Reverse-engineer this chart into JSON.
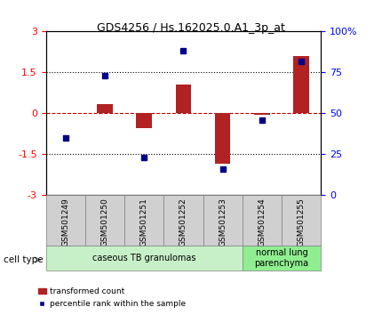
{
  "title": "GDS4256 / Hs.162025.0.A1_3p_at",
  "samples": [
    "GSM501249",
    "GSM501250",
    "GSM501251",
    "GSM501252",
    "GSM501253",
    "GSM501254",
    "GSM501255"
  ],
  "transformed_count": [
    0.0,
    0.35,
    -0.55,
    1.05,
    -1.85,
    -0.05,
    2.1
  ],
  "percentile_rank": [
    35,
    73,
    23,
    88,
    16,
    46,
    82
  ],
  "ylim_left": [
    -3,
    3
  ],
  "ylim_right": [
    0,
    100
  ],
  "yticks_left": [
    -3,
    -1.5,
    0,
    1.5,
    3
  ],
  "yticks_left_labels": [
    "-3",
    "-1.5",
    "0",
    "1.5",
    "3"
  ],
  "yticks_right": [
    0,
    25,
    50,
    75,
    100
  ],
  "yticks_right_labels": [
    "0",
    "25",
    "50",
    "75",
    "100%"
  ],
  "bar_color": "#b22222",
  "dot_color": "#00008b",
  "hline_color": "#cc0000",
  "dot_hline_color": "#cc0000",
  "groups": [
    {
      "label": "caseous TB granulomas",
      "samples": [
        0,
        1,
        2,
        3,
        4
      ],
      "color": "#c8f0c8"
    },
    {
      "label": "normal lung\nparenchyma",
      "samples": [
        5,
        6
      ],
      "color": "#90ee90"
    }
  ],
  "legend_bar_label": "transformed count",
  "legend_dot_label": "percentile rank within the sample",
  "cell_type_label": "cell type",
  "bar_width": 0.4,
  "dotted_hlines": [
    -1.5,
    1.5
  ],
  "solid_hline": 0.0
}
